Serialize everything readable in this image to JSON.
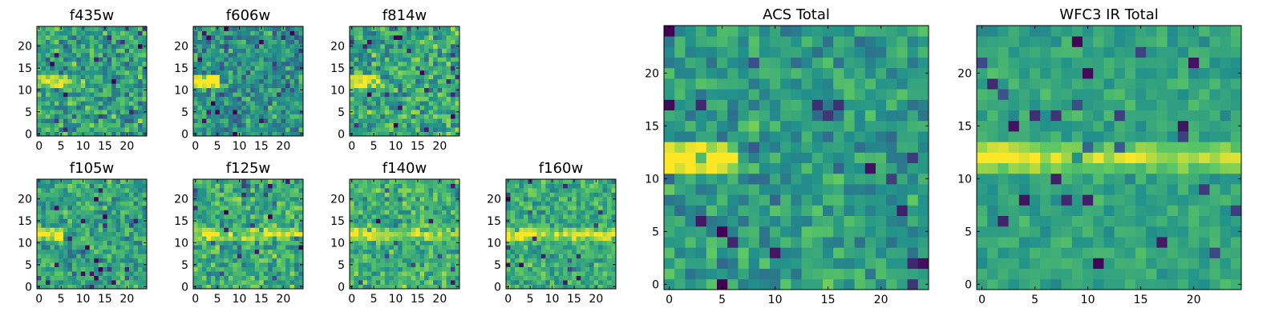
{
  "figure": {
    "colormap": "viridis",
    "colormap_stops": [
      "#440154",
      "#3b528b",
      "#21918c",
      "#5ec962",
      "#fde725"
    ]
  },
  "chart_data": [
    {
      "type": "heatmap",
      "title": "f435w",
      "grid": [
        25,
        25
      ],
      "xlim": [
        -0.5,
        24.5
      ],
      "ylim": [
        -0.5,
        24.5
      ],
      "xticks": [
        0,
        5,
        10,
        15,
        20
      ],
      "yticks": [
        0,
        5,
        10,
        15,
        20
      ],
      "origin": "lower",
      "features": {
        "background": 0.58,
        "noise": 0.23,
        "band": {
          "y": 12,
          "x_start": 0,
          "x_end": 9,
          "strength": 0.3
        }
      }
    },
    {
      "type": "heatmap",
      "title": "f606w",
      "grid": [
        25,
        25
      ],
      "xlim": [
        -0.5,
        24.5
      ],
      "ylim": [
        -0.5,
        24.5
      ],
      "xticks": [
        0,
        5,
        10,
        15,
        20
      ],
      "yticks": [
        0,
        5,
        10,
        15,
        20
      ],
      "origin": "lower",
      "features": {
        "background": 0.5,
        "noise": 0.22,
        "band": {
          "y": 12,
          "x_start": 0,
          "x_end": 5,
          "strength": 0.45
        }
      }
    },
    {
      "type": "heatmap",
      "title": "f814w",
      "grid": [
        25,
        25
      ],
      "xlim": [
        -0.5,
        24.5
      ],
      "ylim": [
        -0.5,
        24.5
      ],
      "xticks": [
        0,
        5,
        10,
        15,
        20
      ],
      "yticks": [
        0,
        5,
        10,
        15,
        20
      ],
      "origin": "lower",
      "features": {
        "background": 0.6,
        "noise": 0.22,
        "band": {
          "y": 12,
          "x_start": 0,
          "x_end": 6,
          "strength": 0.35
        }
      }
    },
    {
      "type": "heatmap",
      "title": "f105w",
      "grid": [
        25,
        25
      ],
      "xlim": [
        -0.5,
        24.5
      ],
      "ylim": [
        -0.5,
        24.5
      ],
      "xticks": [
        0,
        5,
        10,
        15,
        20
      ],
      "yticks": [
        0,
        5,
        10,
        15,
        20
      ],
      "origin": "lower",
      "features": {
        "background": 0.58,
        "noise": 0.18,
        "band": {
          "y": 12,
          "x_start": 0,
          "x_end": 5,
          "strength": 0.35
        }
      }
    },
    {
      "type": "heatmap",
      "title": "f125w",
      "grid": [
        25,
        25
      ],
      "xlim": [
        -0.5,
        24.5
      ],
      "ylim": [
        -0.5,
        24.5
      ],
      "xticks": [
        0,
        5,
        10,
        15,
        20
      ],
      "yticks": [
        0,
        5,
        10,
        15,
        20
      ],
      "origin": "lower",
      "features": {
        "background": 0.62,
        "noise": 0.2,
        "band": {
          "y": 12,
          "x_start": 0,
          "x_end": 25,
          "strength": 0.25
        }
      }
    },
    {
      "type": "heatmap",
      "title": "f140w",
      "grid": [
        25,
        25
      ],
      "xlim": [
        -0.5,
        24.5
      ],
      "ylim": [
        -0.5,
        24.5
      ],
      "xticks": [
        0,
        5,
        10,
        15,
        20
      ],
      "yticks": [
        0,
        5,
        10,
        15,
        20
      ],
      "origin": "lower",
      "features": {
        "background": 0.64,
        "noise": 0.18,
        "band": {
          "y": 12,
          "x_start": 0,
          "x_end": 25,
          "strength": 0.25
        }
      }
    },
    {
      "type": "heatmap",
      "title": "f160w",
      "grid": [
        25,
        25
      ],
      "xlim": [
        -0.5,
        24.5
      ],
      "ylim": [
        -0.5,
        24.5
      ],
      "xticks": [
        0,
        5,
        10,
        15,
        20
      ],
      "yticks": [
        0,
        5,
        10,
        15,
        20
      ],
      "origin": "lower",
      "features": {
        "background": 0.62,
        "noise": 0.17,
        "band": {
          "y": 12,
          "x_start": 0,
          "x_end": 25,
          "strength": 0.3
        }
      }
    },
    {
      "type": "heatmap",
      "title": "ACS Total",
      "grid": [
        25,
        25
      ],
      "xlim": [
        -0.5,
        24.5
      ],
      "ylim": [
        -0.5,
        24.5
      ],
      "xticks": [
        0,
        5,
        10,
        15,
        20
      ],
      "yticks": [
        0,
        5,
        10,
        15,
        20
      ],
      "origin": "lower",
      "features": {
        "background": 0.55,
        "noise": 0.17,
        "band": {
          "y": 12,
          "x_start": 0,
          "x_end": 6,
          "strength": 0.45
        }
      }
    },
    {
      "type": "heatmap",
      "title": "WFC3 IR Total",
      "grid": [
        25,
        25
      ],
      "xlim": [
        -0.5,
        24.5
      ],
      "ylim": [
        -0.5,
        24.5
      ],
      "xticks": [
        0,
        5,
        10,
        15,
        20
      ],
      "yticks": [
        0,
        5,
        10,
        15,
        20
      ],
      "origin": "lower",
      "features": {
        "background": 0.58,
        "noise": 0.1,
        "band": {
          "y": 12,
          "x_start": 0,
          "x_end": 25,
          "strength": 0.3
        }
      }
    }
  ]
}
